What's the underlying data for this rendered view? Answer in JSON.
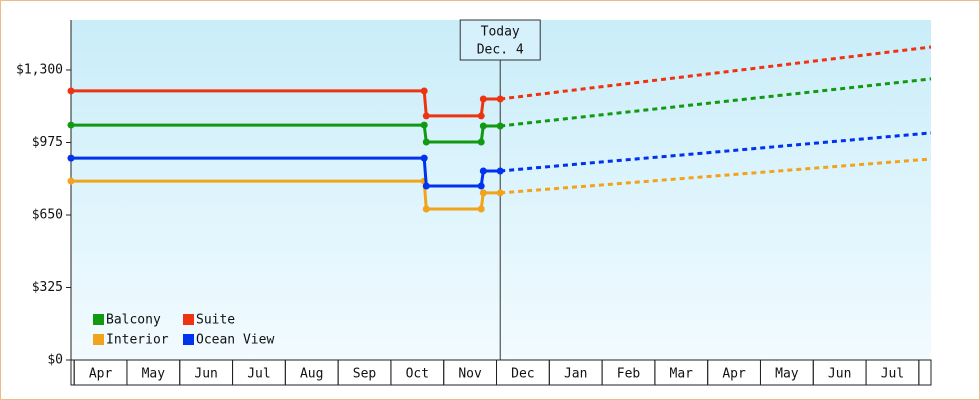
{
  "chart_data": {
    "type": "line",
    "months": [
      "Apr",
      "May",
      "Jun",
      "Jul",
      "Aug",
      "Sep",
      "Oct",
      "Nov",
      "Dec",
      "Jan",
      "Feb",
      "Mar",
      "Apr",
      "May",
      "Jun",
      "Jul"
    ],
    "x": [
      -0.06,
      6.63,
      6.67,
      7.71,
      7.75,
      8.07,
      9.96,
      11.86,
      13.75,
      16.23
    ],
    "xlim": [
      -0.06,
      16.23
    ],
    "ylim": [
      0,
      1524
    ],
    "yticks": [
      {
        "value": 0,
        "label": "$0"
      },
      {
        "value": 325,
        "label": "$325"
      },
      {
        "value": 650,
        "label": "$650"
      },
      {
        "value": 975,
        "label": "$975"
      },
      {
        "value": 1300,
        "label": "$1,300"
      }
    ],
    "grid": false,
    "annotation": {
      "x": 8.07,
      "lines": [
        "Today",
        "Dec. 4"
      ]
    },
    "series": [
      {
        "name": "Balcony",
        "color": "#119911",
        "values": [
          1053,
          1053,
          977,
          977,
          1049,
          1049,
          null,
          null,
          null,
          null
        ],
        "forecast_values": [
          null,
          null,
          null,
          null,
          null,
          1049,
          1098,
          1147,
          1196,
          1260
        ]
      },
      {
        "name": "Suite",
        "color": "#ee3311",
        "values": [
          1206,
          1206,
          1094,
          1094,
          1170,
          1170,
          null,
          null,
          null,
          null
        ],
        "forecast_values": [
          null,
          null,
          null,
          null,
          null,
          1170,
          1224,
          1278,
          1332,
          1403
        ]
      },
      {
        "name": "Interior",
        "color": "#f2a31c",
        "values": [
          802,
          802,
          677,
          677,
          749,
          749,
          null,
          null,
          null,
          null
        ],
        "forecast_values": [
          null,
          null,
          null,
          null,
          null,
          749,
          784,
          820,
          855,
          901
        ]
      },
      {
        "name": "Ocean View",
        "color": "#0033ee",
        "values": [
          905,
          905,
          780,
          780,
          847,
          847,
          null,
          null,
          null,
          null
        ],
        "forecast_values": [
          null,
          null,
          null,
          null,
          null,
          847,
          887,
          926,
          966,
          1018
        ]
      }
    ]
  }
}
